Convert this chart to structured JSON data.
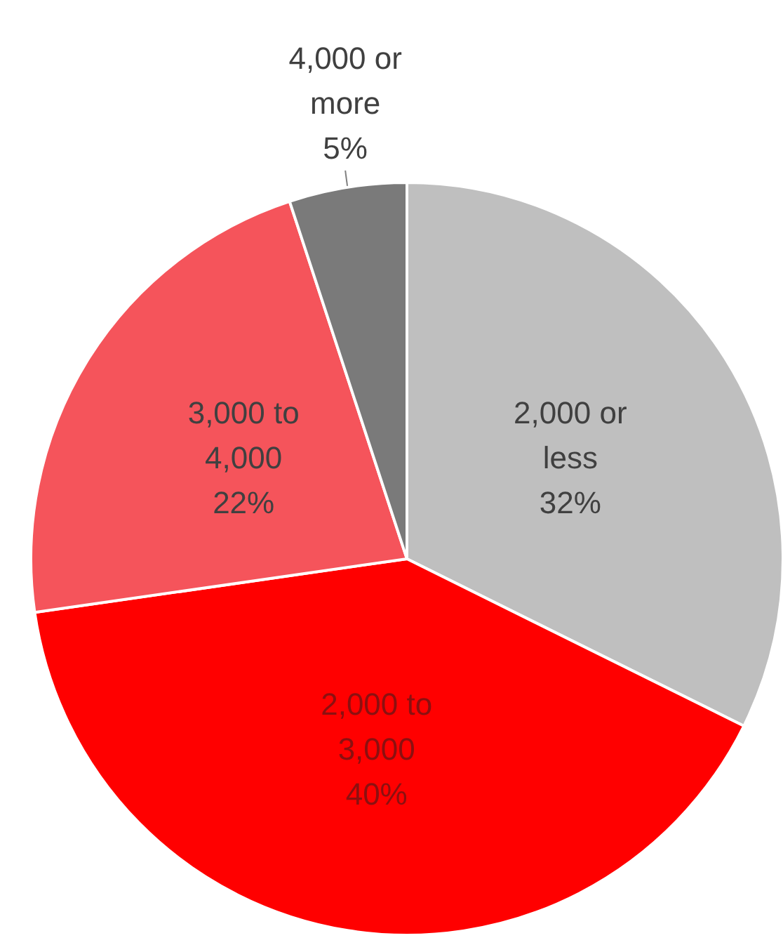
{
  "chart_data": {
    "type": "pie",
    "categories": [
      "2,000 or less",
      "2,000 to 3,000",
      "3,000 to 4,000",
      "4,000 or more"
    ],
    "values": [
      32,
      40,
      22,
      5
    ],
    "colors": [
      "#bfbfbf",
      "#ff0000",
      "#f5545b",
      "#7a7a7a"
    ],
    "value_labels": [
      "32%",
      "40%",
      "22%",
      "5%"
    ]
  }
}
